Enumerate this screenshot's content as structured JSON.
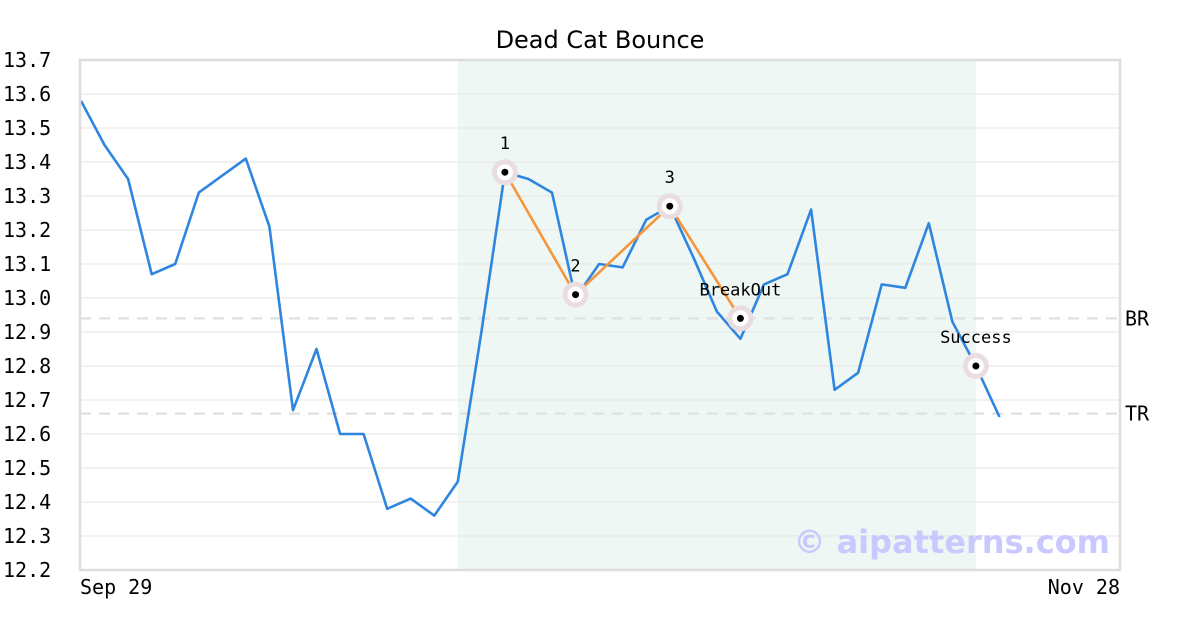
{
  "chart_data": {
    "type": "line",
    "title": "Dead Cat Bounce",
    "ylim": [
      12.2,
      13.7
    ],
    "yticks": [
      "12.2",
      "12.3",
      "12.4",
      "12.5",
      "12.6",
      "12.7",
      "12.8",
      "12.9",
      "13.0",
      "13.1",
      "13.2",
      "13.3",
      "13.4",
      "13.5",
      "13.6",
      "13.7"
    ],
    "x_start_label": "Sep 29",
    "x_end_label": "Nov 28",
    "grid": true,
    "series": [
      {
        "color": "#2e86de",
        "values": [
          13.58,
          13.45,
          13.35,
          13.07,
          13.1,
          13.31,
          13.36,
          13.41,
          13.21,
          12.67,
          12.85,
          12.6,
          12.6,
          12.38,
          12.41,
          12.36,
          12.46,
          12.9,
          13.37,
          13.35,
          13.31,
          13.0,
          13.1,
          13.09,
          13.23,
          13.27,
          13.12,
          12.96,
          12.88,
          13.04,
          13.07,
          13.26,
          12.73,
          12.78,
          13.04,
          13.03,
          13.22,
          12.93,
          12.8,
          12.65
        ]
      }
    ],
    "highlight_range": {
      "start_index": 16,
      "end_index": 38,
      "color": "#eef7f3"
    },
    "pattern_points": [
      {
        "index": 18,
        "value": 13.37,
        "label": "1"
      },
      {
        "index": 21,
        "value": 13.01,
        "label": "2"
      },
      {
        "index": 25,
        "value": 13.27,
        "label": "3"
      },
      {
        "index": 28,
        "value": 12.94,
        "label": "BreakOut"
      },
      {
        "index": 38,
        "value": 12.8,
        "label": "Success"
      }
    ],
    "pattern_line_color": "#f5963c",
    "reference_lines": [
      {
        "label": "BR",
        "value": 12.94
      },
      {
        "label": "TR",
        "value": 12.66
      }
    ],
    "watermark": "© aipatterns.com"
  }
}
